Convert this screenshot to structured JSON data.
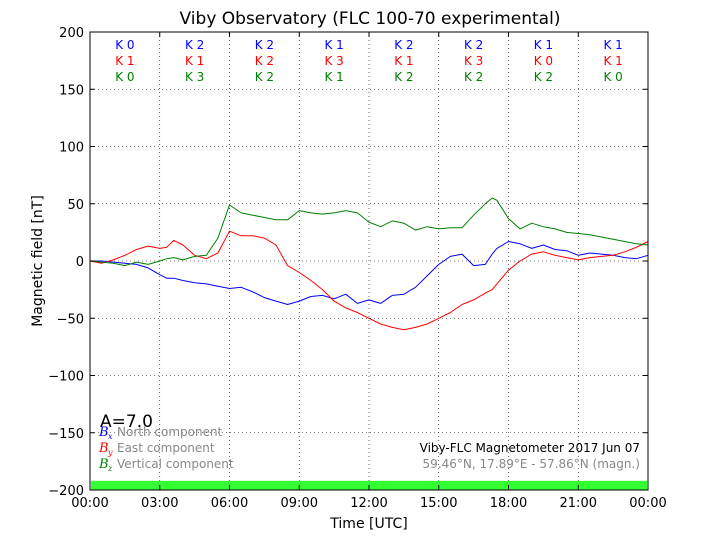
{
  "chart_data": {
    "type": "line",
    "title": "Viby Observatory (FLC 100-70 experimental)",
    "xlabel": "Time [UTC]",
    "ylabel": "Magnetic field [nT]",
    "xlim": [
      0,
      24
    ],
    "ylim": [
      -200,
      200
    ],
    "x_ticks": [
      0,
      3,
      6,
      9,
      12,
      15,
      18,
      21,
      24
    ],
    "x_tick_labels": [
      "00:00",
      "03:00",
      "06:00",
      "09:00",
      "12:00",
      "15:00",
      "18:00",
      "21:00",
      "00:00"
    ],
    "y_ticks": [
      -200,
      -150,
      -100,
      -50,
      0,
      50,
      100,
      150,
      200
    ],
    "y_tick_labels": [
      "−200",
      "−150",
      "−100",
      "−50",
      "0",
      "50",
      "100",
      "150",
      "200"
    ],
    "grid": true,
    "k_indices": {
      "x": [
        1.5,
        4.5,
        7.5,
        10.5,
        13.5,
        16.5,
        19.5,
        22.5
      ],
      "rows": [
        {
          "color": "#0000ff",
          "labels": [
            "K 0",
            "K 2",
            "K 2",
            "K 1",
            "K 2",
            "K 2",
            "K 1",
            "K 1"
          ]
        },
        {
          "color": "#ff0000",
          "labels": [
            "K 1",
            "K 1",
            "K 2",
            "K 3",
            "K 1",
            "K 3",
            "K 0",
            "K 1"
          ]
        },
        {
          "color": "#008000",
          "labels": [
            "K 0",
            "K 3",
            "K 2",
            "K 1",
            "K 2",
            "K 2",
            "K 2",
            "K 0"
          ]
        }
      ]
    },
    "activity_label": "A=7.0",
    "activity_bar": {
      "color": "#33ff33",
      "y_range": [
        -200,
        -192
      ]
    },
    "legend": {
      "placement": "bottom-left",
      "text_color": "#888888",
      "entries": [
        {
          "symbol": "B",
          "sub": "x",
          "label": "North component",
          "color": "#0000ff"
        },
        {
          "symbol": "B",
          "sub": "y",
          "label": "East component",
          "color": "#ff0000"
        },
        {
          "symbol": "B",
          "sub": "z",
          "label": "Vertical component",
          "color": "#008000"
        }
      ]
    },
    "footer_info": {
      "placement": "bottom-right",
      "line1": "Viby-FLC Magnetometer 2017 Jun 07",
      "line2": "59.46°N, 17.89°E - 57.86°N (magn.)"
    },
    "series": [
      {
        "name": "North component",
        "color": "#0000ff",
        "x": [
          0,
          0.5,
          1,
          1.5,
          2,
          2.5,
          3,
          3.3,
          3.6,
          4,
          4.5,
          5,
          5.5,
          6,
          6.5,
          7,
          7.5,
          8,
          8.5,
          9,
          9.5,
          10,
          10.5,
          11,
          11.5,
          12,
          12.5,
          13,
          13.5,
          14,
          14.5,
          15,
          15.5,
          16,
          16.5,
          17,
          17.3,
          17.5,
          18,
          18.5,
          19,
          19.5,
          20,
          20.5,
          21,
          21.5,
          22,
          22.5,
          23,
          23.5,
          24
        ],
        "y": [
          0,
          0,
          -1,
          -2,
          -3,
          -6,
          -12,
          -15,
          -15,
          -17,
          -19,
          -20,
          -22,
          -24,
          -23,
          -27,
          -32,
          -35,
          -38,
          -35,
          -31,
          -30,
          -33,
          -29,
          -37,
          -34,
          -37,
          -30,
          -29,
          -23,
          -13,
          -3,
          4,
          6,
          -4,
          -3,
          6,
          11,
          17,
          15,
          11,
          14,
          10,
          9,
          5,
          7,
          6,
          5,
          3,
          2,
          5
        ]
      },
      {
        "name": "East component",
        "color": "#ff0000",
        "x": [
          0,
          0.5,
          1,
          1.5,
          2,
          2.5,
          3,
          3.3,
          3.6,
          4,
          4.5,
          5,
          5.5,
          6,
          6.5,
          7,
          7.5,
          8,
          8.5,
          9,
          9.5,
          10,
          10.5,
          11,
          11.5,
          12,
          12.5,
          13,
          13.5,
          14,
          14.5,
          15,
          15.5,
          16,
          16.5,
          17,
          17.3,
          17.5,
          18,
          18.5,
          19,
          19.5,
          20,
          20.5,
          21,
          21.5,
          22,
          22.5,
          23,
          23.5,
          24
        ],
        "y": [
          0,
          -2,
          1,
          5,
          10,
          13,
          11,
          12,
          18,
          14,
          5,
          2,
          7,
          26,
          22,
          22,
          20,
          14,
          -4,
          -10,
          -17,
          -25,
          -35,
          -41,
          -45,
          -50,
          -55,
          -58,
          -60,
          -58,
          -55,
          -50,
          -45,
          -38,
          -34,
          -28,
          -25,
          -20,
          -8,
          0,
          6,
          8,
          5,
          3,
          1,
          3,
          4,
          5,
          8,
          12,
          17
        ]
      },
      {
        "name": "Vertical component",
        "color": "#008000",
        "x": [
          0,
          0.5,
          1,
          1.5,
          2,
          2.5,
          3,
          3.3,
          3.6,
          4,
          4.5,
          5,
          5.5,
          6,
          6.5,
          7,
          7.5,
          8,
          8.5,
          9,
          9.5,
          10,
          10.5,
          11,
          11.5,
          12,
          12.5,
          13,
          13.5,
          14,
          14.5,
          15,
          15.5,
          16,
          16.5,
          17,
          17.3,
          17.5,
          18,
          18.5,
          19,
          19.5,
          20,
          20.5,
          21,
          21.5,
          22,
          22.5,
          23,
          23.5,
          24
        ],
        "y": [
          0,
          -1,
          -2,
          -4,
          -1,
          -3,
          0,
          2,
          3,
          1,
          4,
          5,
          20,
          49,
          42,
          40,
          38,
          36,
          36,
          44,
          42,
          41,
          42,
          44,
          42,
          34,
          30,
          35,
          33,
          27,
          30,
          28,
          29,
          29,
          40,
          50,
          55,
          53,
          37,
          28,
          33,
          30,
          28,
          25,
          24,
          23,
          21,
          19,
          17,
          15,
          14
        ]
      }
    ]
  }
}
